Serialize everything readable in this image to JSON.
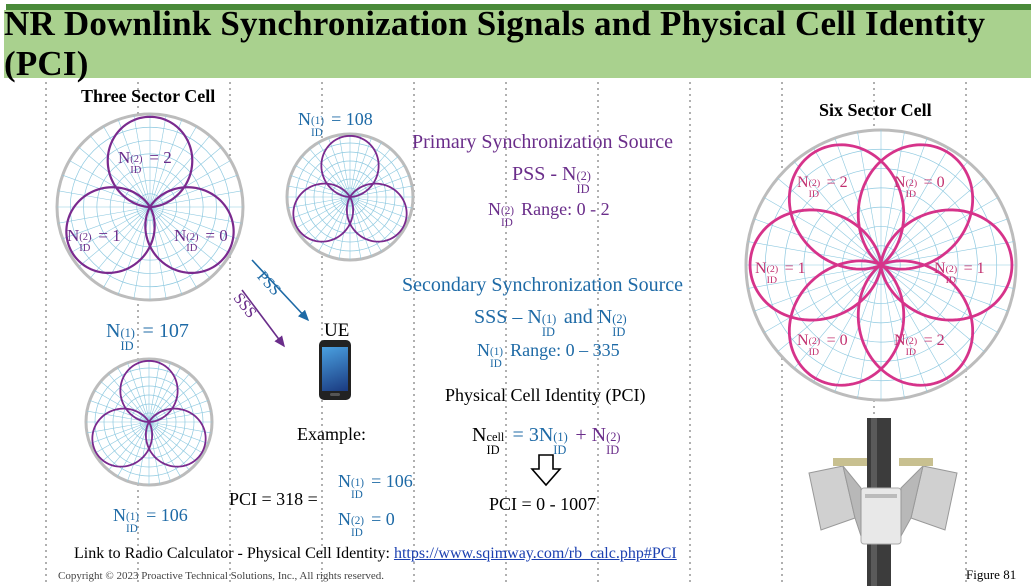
{
  "title": "NR Downlink Synchronization Signals and Physical Cell Identity (PCI)",
  "three_sector": {
    "heading": "Three Sector Cell",
    "labels": [
      {
        "n": "N",
        "sup": "(2)",
        "sub": "ID",
        "rest": "= 2"
      },
      {
        "n": "N",
        "sup": "(2)",
        "sub": "ID",
        "rest": "= 1"
      },
      {
        "n": "N",
        "sup": "(2)",
        "sub": "ID",
        "rest": "= 0"
      }
    ],
    "nid1_107": {
      "n": "N",
      "sup": "(1)",
      "sub": "ID",
      "rest": "= 107"
    },
    "nid1_108": {
      "n": "N",
      "sup": "(1)",
      "sub": "ID",
      "rest": "= 108"
    },
    "nid1_106": {
      "n": "N",
      "sup": "(1)",
      "sub": "ID",
      "rest": "= 106"
    }
  },
  "arrows": {
    "pss": "PSS",
    "sss": "SSS",
    "ue": "UE"
  },
  "pss_block": {
    "heading": "Primary Synchronization Source",
    "line1_prefix": "PSS - N",
    "line1_sup": "(2)",
    "line1_sub": "ID",
    "line2_sup": "(2)",
    "line2_sub": "ID",
    "line2_rest": "Range: 0 - 2"
  },
  "sss_block": {
    "heading": "Secondary Synchronization Source",
    "line1_prefix": "SSS – N",
    "line1_sup1": "(1)",
    "line1_sub1": "ID",
    "line1_mid": "and N",
    "line1_sup2": "(2)",
    "line1_sub2": "ID",
    "line2_sup": "(1)",
    "line2_sub": "ID",
    "line2_rest": "Range: 0 – 335"
  },
  "pci_block": {
    "heading": "Physical Cell Identity (PCI)",
    "formula_lhs_sup": "cell",
    "formula_lhs_sub": "ID",
    "formula_eq": "= 3N",
    "formula_sup1": "(1)",
    "formula_sub1": "ID",
    "formula_plus": "+ N",
    "formula_sup2": "(2)",
    "formula_sub2": "ID",
    "result": "PCI = 0 - 1007"
  },
  "example": {
    "label": "Example:",
    "pci": "PCI = 318 =",
    "n1": {
      "sup": "(1)",
      "sub": "ID",
      "rest": "= 106"
    },
    "n2": {
      "sup": "(2)",
      "sub": "ID",
      "rest": "= 0"
    }
  },
  "six_sector": {
    "heading": "Six Sector Cell",
    "labels": [
      {
        "sup": "(2)",
        "sub": "ID",
        "rest": "= 2"
      },
      {
        "sup": "(2)",
        "sub": "ID",
        "rest": "= 0"
      },
      {
        "sup": "(2)",
        "sub": "ID",
        "rest": "= 1"
      },
      {
        "sup": "(2)",
        "sub": "ID",
        "rest": "= 1"
      },
      {
        "sup": "(2)",
        "sub": "ID",
        "rest": "= 0"
      },
      {
        "sup": "(2)",
        "sub": "ID",
        "rest": "= 2"
      }
    ]
  },
  "footer": {
    "link_prefix": "Link to Radio Calculator - Physical Cell Identity:",
    "link_url": "https://www.sqimway.com/rb_calc.php#PCI",
    "copyright": "Copyright © 2023 Proactive Technical Solutions, Inc.,   All rights reserved.",
    "figure": "Figure 81"
  },
  "colors": {
    "title_bg": "#a9d18e",
    "purple": "#7a2a8e",
    "magenta": "#d6338a",
    "blue": "#1e6aa6",
    "polar_grid": "#8ec9e0"
  }
}
